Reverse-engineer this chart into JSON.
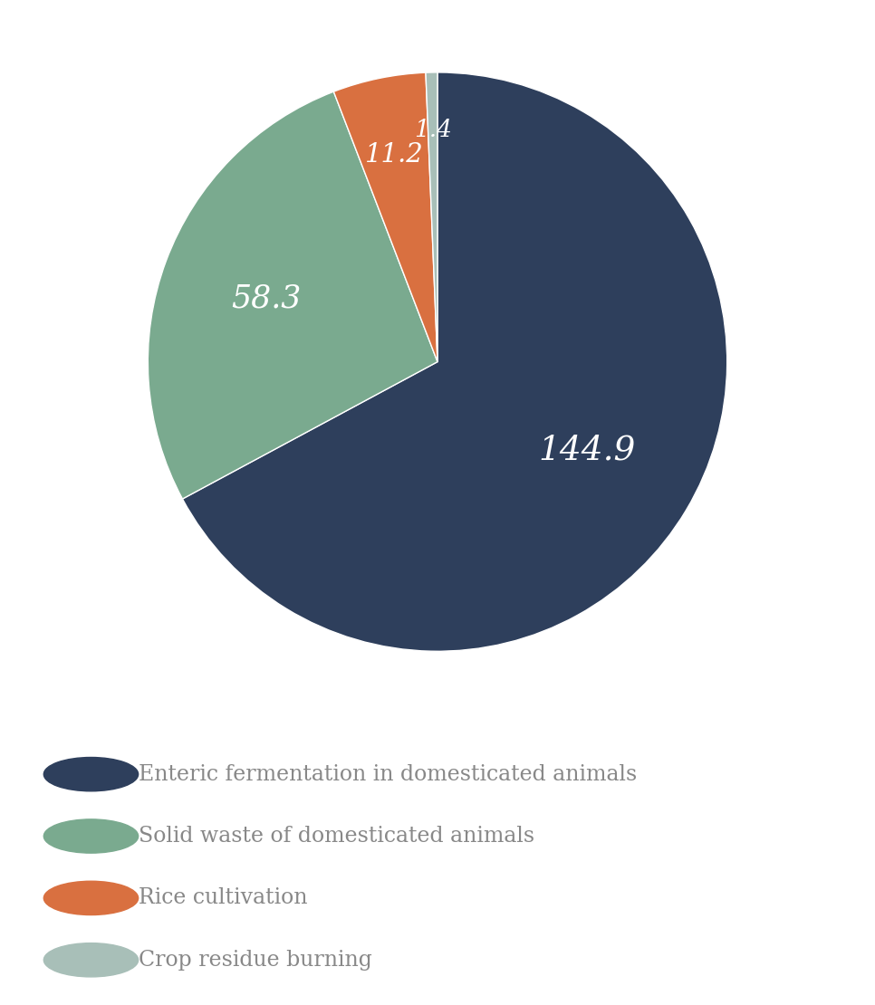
{
  "labels": [
    "Enteric fermentation in domesticated animals",
    "Solid waste of domesticated animals",
    "Rice cultivation",
    "Crop residue burning"
  ],
  "values": [
    144.9,
    58.3,
    11.2,
    1.4
  ],
  "colors": [
    "#2e3f5c",
    "#7aaa8f",
    "#d97040",
    "#a8bfb8"
  ],
  "autopct_labels": [
    "144.9",
    "58.3",
    "11.2",
    "1.4"
  ],
  "text_color": "#ffffff",
  "legend_text_color": "#888888",
  "background_color": "#ffffff",
  "legend_fontsize": 17,
  "startangle": 90,
  "figsize": [
    9.66,
    11.1
  ]
}
